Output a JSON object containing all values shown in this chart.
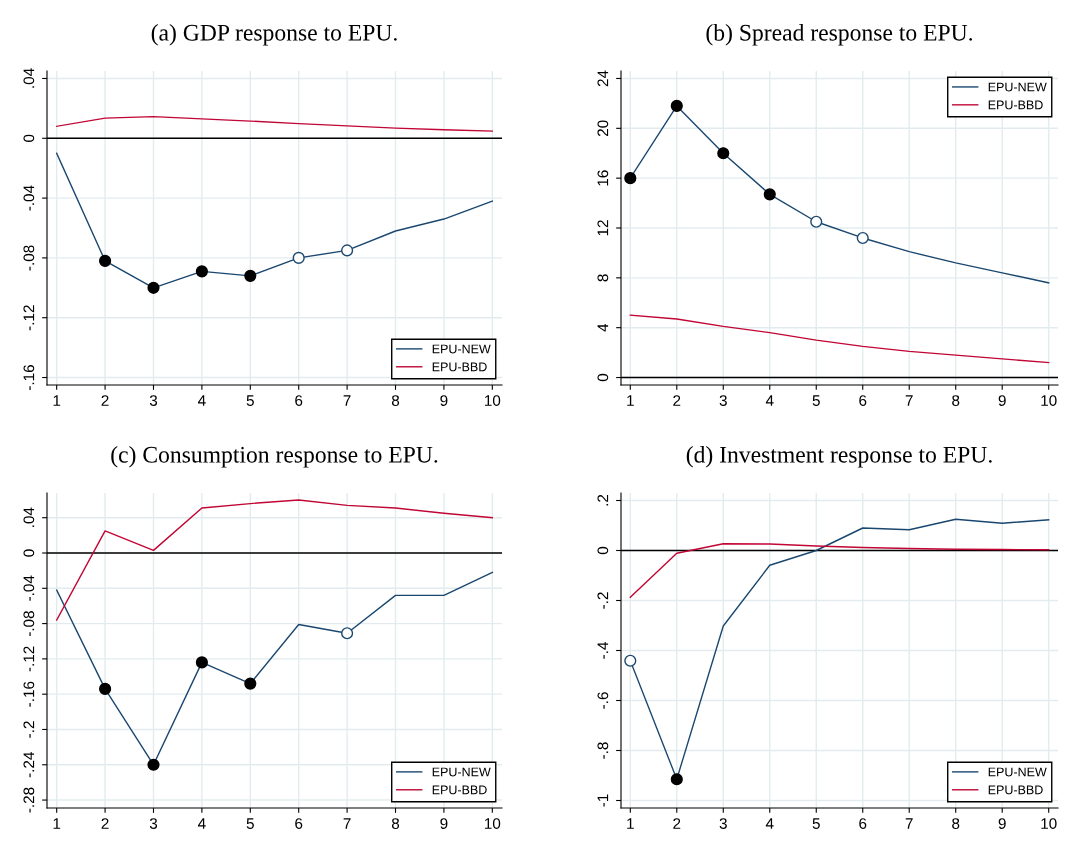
{
  "chart_data": [
    {
      "type": "line",
      "title": "(a) GDP response to EPU.",
      "x": [
        1,
        2,
        3,
        4,
        5,
        6,
        7,
        8,
        9,
        10
      ],
      "xlim": [
        0.8,
        10.2
      ],
      "xticks": [
        1,
        2,
        3,
        4,
        5,
        6,
        7,
        8,
        9,
        10
      ],
      "ylim": [
        -0.165,
        0.045
      ],
      "yticks": [
        {
          "value": -0.16,
          "label": "-.16"
        },
        {
          "value": -0.12,
          "label": "-.12"
        },
        {
          "value": -0.08,
          "label": "-.08"
        },
        {
          "value": -0.04,
          "label": "-.04"
        },
        0,
        {
          "value": 0.04,
          "label": ".04"
        }
      ],
      "grid": true,
      "legend": "bottom right",
      "ref_lines": [
        {
          "axis": "y",
          "value": 0,
          "color": "#000000"
        }
      ],
      "series": [
        {
          "name": "EPU-NEW",
          "color": "#1a476f",
          "values": [
            -0.01,
            -0.082,
            -0.1,
            -0.089,
            -0.092,
            -0.08,
            -0.075,
            -0.062,
            -0.054,
            -0.042
          ]
        },
        {
          "name": "EPU-BBD",
          "color": "#c10534",
          "values": [
            0.008,
            0.0135,
            0.0145,
            0.013,
            0.0115,
            0.0098,
            0.0083,
            0.0068,
            0.0057,
            0.0048
          ]
        },
        {
          "type": "scatter",
          "marker": "circle",
          "color": "#000000",
          "x": [
            2,
            3,
            4,
            5
          ],
          "values": [
            -0.082,
            -0.1,
            -0.089,
            -0.092
          ]
        },
        {
          "type": "scatter",
          "marker": "circle",
          "color": "#1a476f",
          "colors": [
            "#ffffff",
            "#ffffff"
          ],
          "x": [
            6,
            7
          ],
          "values": [
            -0.08,
            -0.075
          ]
        }
      ]
    },
    {
      "type": "line",
      "title": "(b) Spread response to EPU.",
      "x": [
        1,
        2,
        3,
        4,
        5,
        6,
        7,
        8,
        9,
        10
      ],
      "xlim": [
        0.8,
        10.2
      ],
      "xticks": [
        1,
        2,
        3,
        4,
        5,
        6,
        7,
        8,
        9,
        10
      ],
      "ylim": [
        -0.6,
        24.6
      ],
      "yticks": [
        0,
        4,
        8,
        12,
        16,
        20,
        24
      ],
      "grid": true,
      "legend": "top right",
      "ref_lines": [
        {
          "axis": "y",
          "value": 0,
          "color": "#000000"
        }
      ],
      "series": [
        {
          "name": "EPU-NEW",
          "color": "#1a476f",
          "values": [
            16.0,
            21.8,
            18.0,
            14.7,
            12.5,
            11.2,
            10.1,
            9.2,
            8.4,
            7.6
          ]
        },
        {
          "name": "EPU-BBD",
          "color": "#c10534",
          "values": [
            5.0,
            4.7,
            4.1,
            3.6,
            3.0,
            2.5,
            2.1,
            1.8,
            1.5,
            1.2
          ]
        },
        {
          "type": "scatter",
          "marker": "circle",
          "color": "#000000",
          "x": [
            1,
            2,
            3,
            4
          ],
          "values": [
            16.0,
            21.8,
            18.0,
            14.7
          ]
        },
        {
          "type": "scatter",
          "marker": "circle",
          "color": "#1a476f",
          "colors": [
            "#ffffff",
            "#ffffff"
          ],
          "x": [
            5,
            6
          ],
          "values": [
            12.5,
            11.2
          ]
        }
      ]
    },
    {
      "type": "line",
      "title": "(c) Consumption response to EPU.",
      "x": [
        1,
        2,
        3,
        4,
        5,
        6,
        7,
        8,
        9,
        10
      ],
      "xlim": [
        0.8,
        10.2
      ],
      "xticks": [
        1,
        2,
        3,
        4,
        5,
        6,
        7,
        8,
        9,
        10
      ],
      "ylim": [
        -0.289,
        0.068
      ],
      "yticks": [
        {
          "value": -0.28,
          "label": "-.28"
        },
        {
          "value": -0.24,
          "label": "-.24"
        },
        {
          "value": -0.2,
          "label": "-.2"
        },
        {
          "value": -0.16,
          "label": "-.16"
        },
        {
          "value": -0.12,
          "label": "-.12"
        },
        {
          "value": -0.08,
          "label": "-.08"
        },
        {
          "value": -0.04,
          "label": "-.04"
        },
        0,
        {
          "value": 0.04,
          "label": ".04"
        }
      ],
      "grid": true,
      "legend": "bottom right",
      "ref_lines": [
        {
          "axis": "y",
          "value": 0,
          "color": "#000000"
        }
      ],
      "series": [
        {
          "name": "EPU-NEW",
          "color": "#1a476f",
          "values": [
            -0.042,
            -0.154,
            -0.24,
            -0.124,
            -0.148,
            -0.081,
            -0.091,
            -0.048,
            -0.048,
            -0.022
          ]
        },
        {
          "name": "EPU-BBD",
          "color": "#c10534",
          "values": [
            -0.076,
            0.025,
            0.003,
            0.051,
            0.056,
            0.06,
            0.054,
            0.051,
            0.045,
            0.04
          ]
        },
        {
          "type": "scatter",
          "marker": "circle",
          "color": "#000000",
          "x": [
            2,
            3,
            4,
            5
          ],
          "values": [
            -0.154,
            -0.24,
            -0.124,
            -0.148
          ]
        },
        {
          "type": "scatter",
          "marker": "circle",
          "color": "#1a476f",
          "colors": [
            "#ffffff"
          ],
          "x": [
            7
          ],
          "values": [
            -0.091
          ]
        }
      ]
    },
    {
      "type": "line",
      "title": "(d) Investment response to EPU.",
      "x": [
        1,
        2,
        3,
        4,
        5,
        6,
        7,
        8,
        9,
        10
      ],
      "xlim": [
        0.8,
        10.2
      ],
      "xticks": [
        1,
        2,
        3,
        4,
        5,
        6,
        7,
        8,
        9,
        10
      ],
      "ylim": [
        -1.03,
        0.23
      ],
      "yticks": [
        {
          "value": -1,
          "label": "-1"
        },
        {
          "value": -0.8,
          "label": "-.8"
        },
        {
          "value": -0.6,
          "label": "-.6"
        },
        {
          "value": -0.4,
          "label": "-.4"
        },
        {
          "value": -0.2,
          "label": "-.2"
        },
        0,
        {
          "value": 0.2,
          "label": ".2"
        }
      ],
      "grid": true,
      "legend": "bottom right",
      "ref_lines": [
        {
          "axis": "y",
          "value": 0,
          "color": "#000000"
        }
      ],
      "series": [
        {
          "name": "EPU-NEW",
          "color": "#1a476f",
          "values": [
            -0.441,
            -0.915,
            -0.302,
            -0.059,
            0.0,
            0.09,
            0.083,
            0.125,
            0.109,
            0.123
          ]
        },
        {
          "name": "EPU-BBD",
          "color": "#c10534",
          "values": [
            -0.187,
            -0.011,
            0.027,
            0.026,
            0.018,
            0.012,
            0.008,
            0.005,
            0.004,
            0.003
          ]
        },
        {
          "type": "scatter",
          "marker": "circle",
          "color": "#000000",
          "x": [
            2
          ],
          "values": [
            -0.915
          ]
        },
        {
          "type": "scatter",
          "marker": "circle",
          "color": "#1a476f",
          "colors": [
            "#ffffff"
          ],
          "x": [
            1
          ],
          "values": [
            -0.441
          ]
        }
      ]
    }
  ]
}
